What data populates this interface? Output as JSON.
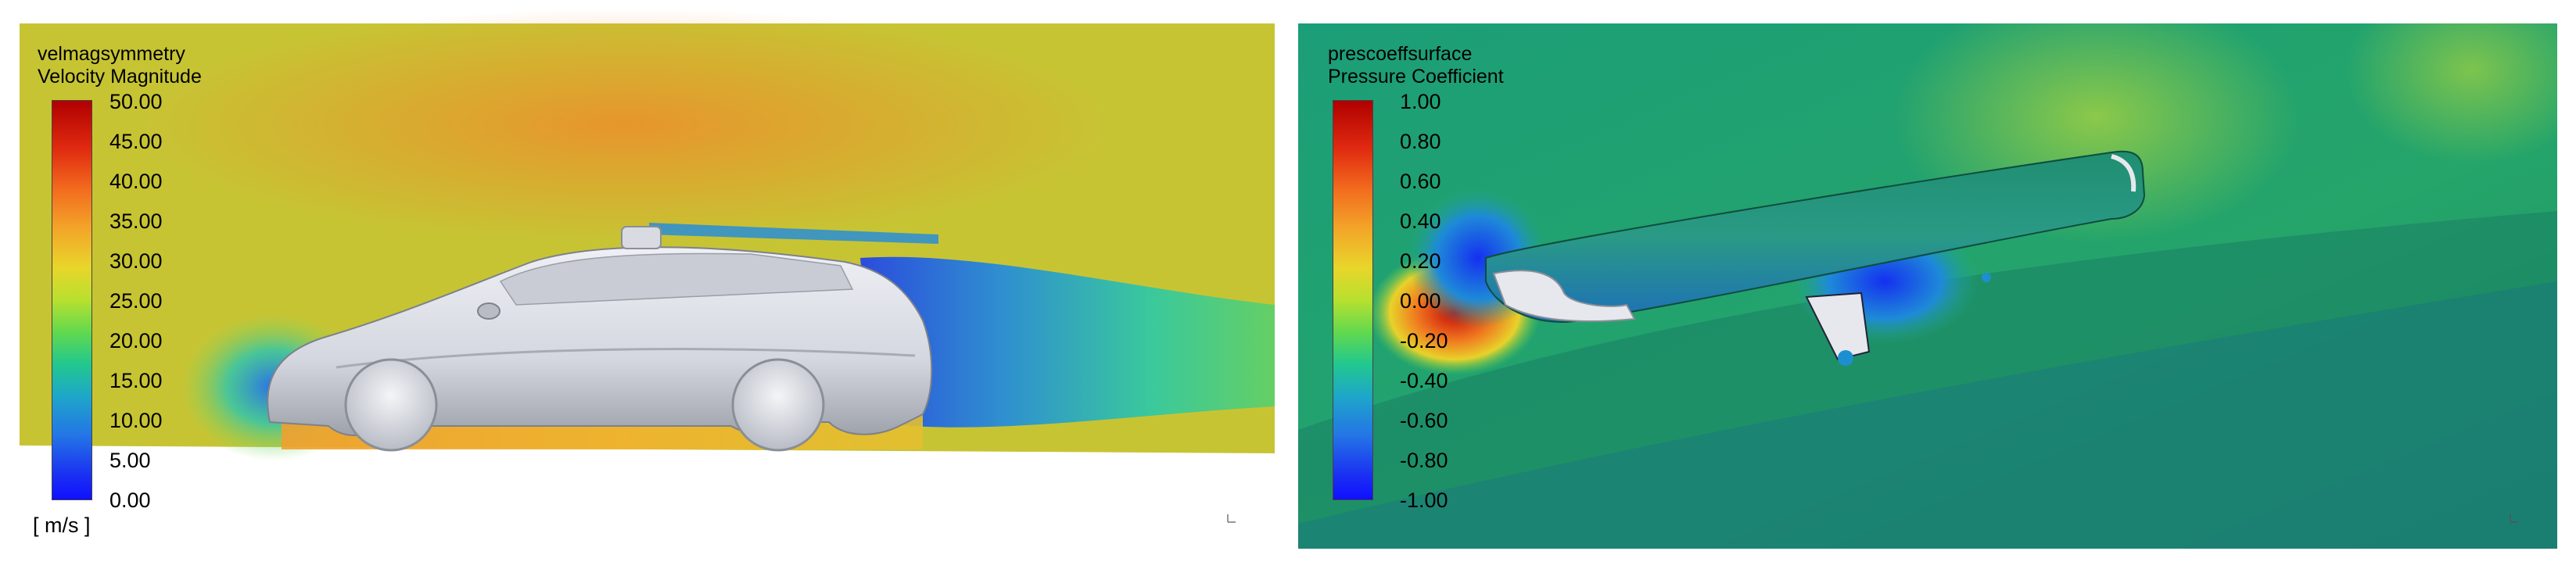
{
  "left": {
    "title_line1": "velmagsymmetry",
    "title_line2": "Velocity Magnitude",
    "legend_ticks": [
      "50.00",
      "45.00",
      "40.00",
      "35.00",
      "30.00",
      "25.00",
      "20.00",
      "15.00",
      "10.00",
      "5.00",
      "0.00"
    ],
    "unit": "[ m/s ]"
  },
  "right": {
    "title_line1": "prescoeffsurface",
    "title_line2": "Pressure Coefficient",
    "legend_ticks": [
      "1.00",
      "0.80",
      "0.60",
      "0.40",
      "0.20",
      "0.00",
      "-0.20",
      "-0.40",
      "-0.60",
      "-0.80",
      "-1.00"
    ]
  },
  "colors": {
    "velocity_background": "#c7c434",
    "pressure_background": "#22a36b",
    "car_body": "#d9dce4",
    "colormap_max": "#b00000",
    "colormap_min": "#1010ff"
  }
}
